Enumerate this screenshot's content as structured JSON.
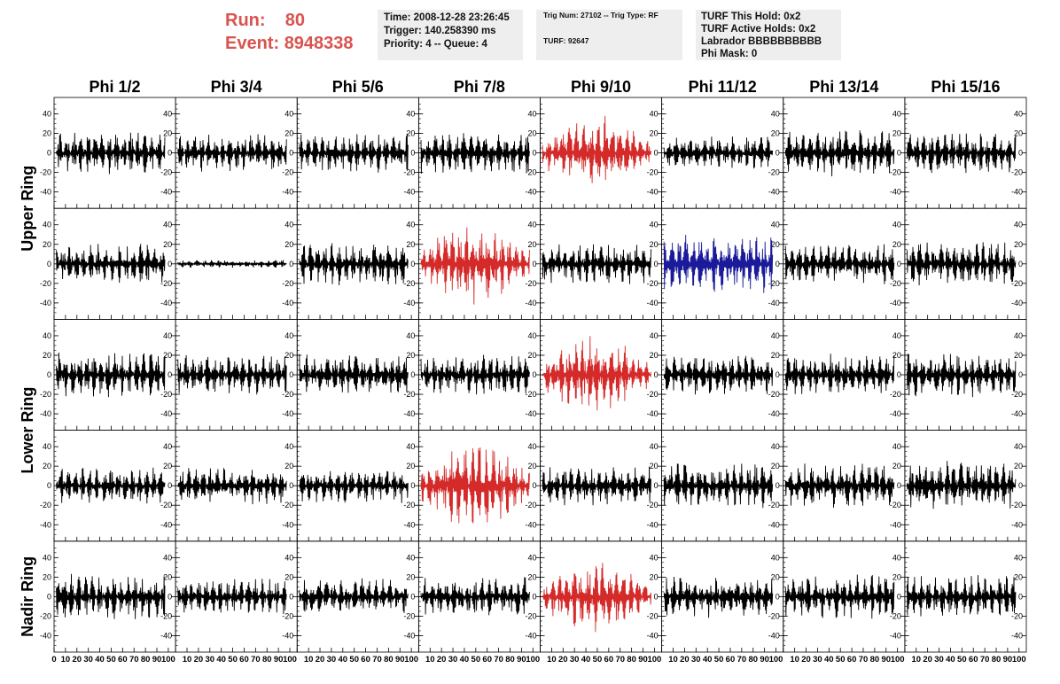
{
  "header": {
    "run_label": "Run:",
    "run_value": "80",
    "event_label": "Event:",
    "event_value": "8948338",
    "time": "Time: 2008-12-28 23:26:45",
    "trigger": "Trigger: 140.258390 ms",
    "priority": "Priority: 4 -- Queue: 4",
    "trig_num": "Trig Num: 27102 -- Trig Type: RF",
    "turf": "TURF: 92647",
    "turf_this_hold": "TURF This Hold: 0x2",
    "turf_active_holds": "TURF Active Holds: 0x2",
    "labrador": "Labrador BBBBBBBBBB",
    "phi_mask": "Phi Mask: 0"
  },
  "colors": {
    "header_red": "#d9534f",
    "trace_black": "#000000",
    "trace_red": "#d42a2a",
    "trace_blue": "#1a1a9a",
    "box_gray": "#eeeeee"
  },
  "chart_data": {
    "type": "line",
    "columns": [
      "Phi 1/2",
      "Phi 3/4",
      "Phi 5/6",
      "Phi 7/8",
      "Phi 9/10",
      "Phi 11/12",
      "Phi 13/14",
      "Phi 15/16"
    ],
    "ring_labels": [
      "Upper Ring",
      "Lower Ring",
      "Nadir Ring"
    ],
    "rows": 5,
    "ring_spans": [
      [
        0,
        1
      ],
      [
        2,
        3
      ],
      [
        4,
        4
      ]
    ],
    "xlim": [
      0,
      100
    ],
    "ylim": [
      -50,
      50
    ],
    "x_tick_labels": [
      "0",
      "10",
      "20",
      "30",
      "40",
      "50",
      "60",
      "70",
      "80",
      "90",
      "100"
    ],
    "y_tick_labels": [
      "40",
      "20",
      "0",
      "-20",
      "-40"
    ],
    "y_tick_values": [
      40,
      20,
      0,
      -20,
      -40
    ],
    "traces": [
      {
        "row": 0,
        "col": 0,
        "color": "black",
        "amplitude": 16,
        "seed": 11
      },
      {
        "row": 0,
        "col": 1,
        "color": "black",
        "amplitude": 14,
        "seed": 12
      },
      {
        "row": 0,
        "col": 2,
        "color": "black",
        "amplitude": 15,
        "seed": 13
      },
      {
        "row": 0,
        "col": 3,
        "color": "black",
        "amplitude": 16,
        "seed": 14
      },
      {
        "row": 0,
        "col": 4,
        "color": "red",
        "amplitude": 24,
        "seed": 15,
        "envelope": true
      },
      {
        "row": 0,
        "col": 5,
        "color": "black",
        "amplitude": 13,
        "seed": 16
      },
      {
        "row": 0,
        "col": 6,
        "color": "black",
        "amplitude": 18,
        "seed": 17
      },
      {
        "row": 0,
        "col": 7,
        "color": "black",
        "amplitude": 16,
        "seed": 18
      },
      {
        "row": 1,
        "col": 0,
        "color": "black",
        "amplitude": 15,
        "seed": 21
      },
      {
        "row": 1,
        "col": 1,
        "color": "black",
        "amplitude": 3,
        "seed": 22
      },
      {
        "row": 1,
        "col": 2,
        "color": "black",
        "amplitude": 16,
        "seed": 23
      },
      {
        "row": 1,
        "col": 3,
        "color": "red",
        "amplitude": 27,
        "seed": 24,
        "envelope": true
      },
      {
        "row": 1,
        "col": 4,
        "color": "black",
        "amplitude": 16,
        "seed": 25
      },
      {
        "row": 1,
        "col": 5,
        "color": "blue",
        "amplitude": 22,
        "seed": 26
      },
      {
        "row": 1,
        "col": 6,
        "color": "black",
        "amplitude": 16,
        "seed": 27
      },
      {
        "row": 1,
        "col": 7,
        "color": "black",
        "amplitude": 17,
        "seed": 28
      },
      {
        "row": 2,
        "col": 0,
        "color": "black",
        "amplitude": 17,
        "seed": 31
      },
      {
        "row": 2,
        "col": 1,
        "color": "black",
        "amplitude": 15,
        "seed": 32
      },
      {
        "row": 2,
        "col": 2,
        "color": "black",
        "amplitude": 16,
        "seed": 33
      },
      {
        "row": 2,
        "col": 3,
        "color": "black",
        "amplitude": 15,
        "seed": 34
      },
      {
        "row": 2,
        "col": 4,
        "color": "red",
        "amplitude": 25,
        "seed": 35,
        "envelope": true
      },
      {
        "row": 2,
        "col": 5,
        "color": "black",
        "amplitude": 16,
        "seed": 36
      },
      {
        "row": 2,
        "col": 6,
        "color": "black",
        "amplitude": 16,
        "seed": 37
      },
      {
        "row": 2,
        "col": 7,
        "color": "black",
        "amplitude": 17,
        "seed": 38
      },
      {
        "row": 3,
        "col": 0,
        "color": "black",
        "amplitude": 14,
        "seed": 41
      },
      {
        "row": 3,
        "col": 1,
        "color": "black",
        "amplitude": 14,
        "seed": 42
      },
      {
        "row": 3,
        "col": 2,
        "color": "black",
        "amplitude": 13,
        "seed": 43
      },
      {
        "row": 3,
        "col": 3,
        "color": "red",
        "amplitude": 28,
        "seed": 44,
        "envelope": true
      },
      {
        "row": 3,
        "col": 4,
        "color": "black",
        "amplitude": 15,
        "seed": 45
      },
      {
        "row": 3,
        "col": 5,
        "color": "black",
        "amplitude": 17,
        "seed": 46
      },
      {
        "row": 3,
        "col": 6,
        "color": "black",
        "amplitude": 17,
        "seed": 47
      },
      {
        "row": 3,
        "col": 7,
        "color": "black",
        "amplitude": 19,
        "seed": 48
      },
      {
        "row": 4,
        "col": 0,
        "color": "black",
        "amplitude": 17,
        "seed": 51
      },
      {
        "row": 4,
        "col": 1,
        "color": "black",
        "amplitude": 14,
        "seed": 52
      },
      {
        "row": 4,
        "col": 2,
        "color": "black",
        "amplitude": 14,
        "seed": 53
      },
      {
        "row": 4,
        "col": 3,
        "color": "black",
        "amplitude": 15,
        "seed": 54
      },
      {
        "row": 4,
        "col": 4,
        "color": "red",
        "amplitude": 22,
        "seed": 55,
        "envelope": true
      },
      {
        "row": 4,
        "col": 5,
        "color": "black",
        "amplitude": 16,
        "seed": 56
      },
      {
        "row": 4,
        "col": 6,
        "color": "black",
        "amplitude": 17,
        "seed": 57
      },
      {
        "row": 4,
        "col": 7,
        "color": "black",
        "amplitude": 16,
        "seed": 58
      }
    ]
  }
}
